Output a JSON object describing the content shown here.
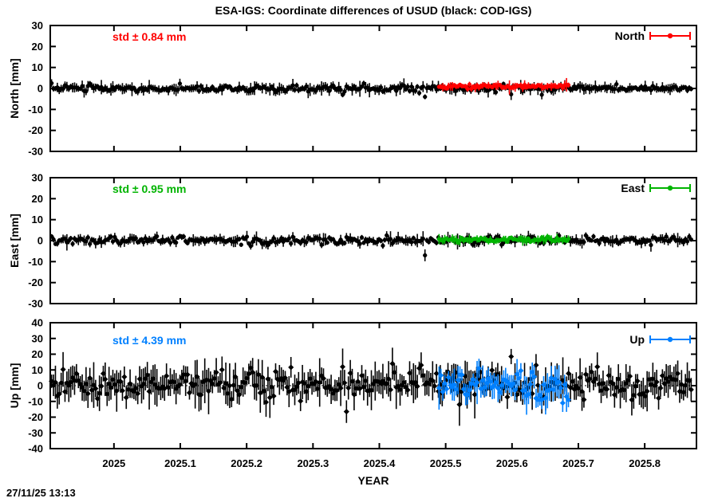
{
  "header": {
    "title": "ESA-IGS: Coordinate differences of USUD (black: COD-IGS)"
  },
  "footer": {
    "timestamp": "27/11/25 13:13"
  },
  "axes": {
    "xlabel": "YEAR",
    "xlim": [
      2024.904,
      2025.878
    ],
    "xticks": [
      {
        "value": 2025.0,
        "label": "2025"
      },
      {
        "value": 2025.1,
        "label": "2025.1"
      },
      {
        "value": 2025.2,
        "label": "2025.2"
      },
      {
        "value": 2025.3,
        "label": "2025.3"
      },
      {
        "value": 2025.4,
        "label": "2025.4"
      },
      {
        "value": 2025.5,
        "label": "2025.5"
      },
      {
        "value": 2025.6,
        "label": "2025.6"
      },
      {
        "value": 2025.7,
        "label": "2025.7"
      },
      {
        "value": 2025.8,
        "label": "2025.8"
      }
    ]
  },
  "colors": {
    "black": "#000000",
    "north": "#ff0000",
    "east": "#00b400",
    "up": "#0080ff"
  },
  "chart_data": [
    {
      "id": "north",
      "type": "scatter",
      "ylabel": "North [mm]",
      "std_label": "std ± 0.84 mm",
      "std_value_mm": 0.84,
      "legend_label": "North",
      "accent_color": "#ff0000",
      "ylim": [
        -30,
        30
      ],
      "zero_line": false,
      "yticks": [
        {
          "value": 30,
          "label": "30"
        },
        {
          "value": 20,
          "label": "20"
        },
        {
          "value": 10,
          "label": "10"
        },
        {
          "value": 0,
          "label": "0"
        },
        {
          "value": -10,
          "label": "-10"
        },
        {
          "value": -20,
          "label": "-20"
        },
        {
          "value": -30,
          "label": "-30"
        }
      ],
      "series": [
        {
          "name": "COD-IGS",
          "color": "#000000",
          "marker": "circle",
          "x_start": 2024.906,
          "x_end": 2025.87,
          "n": 335,
          "mean": 0.1,
          "std": 0.84,
          "clamp": [
            -3.2,
            3.2
          ],
          "err_base": 0.5,
          "err_rand": 0.5,
          "seed": 101,
          "outliers": [
            {
              "x": 2024.906,
              "y": 2.5
            },
            {
              "x": 2025.1,
              "y": 2.3
            },
            {
              "x": 2025.345,
              "y": -3.0
            },
            {
              "x": 2025.47,
              "y": -4.0
            },
            {
              "x": 2025.6,
              "y": -2.8
            },
            {
              "x": 2025.645,
              "y": -3.0
            }
          ]
        },
        {
          "name": "ESA-IGS",
          "color": "#ff0000",
          "marker": "circle",
          "x_start": 2025.49,
          "x_end": 2025.685,
          "n": 69,
          "mean": 1.0,
          "std": 0.55,
          "clamp": [
            -0.8,
            2.5
          ],
          "err_base": 0.4,
          "err_rand": 0.4,
          "seed": 102,
          "outliers": []
        }
      ]
    },
    {
      "id": "east",
      "type": "scatter",
      "ylabel": "East [mm]",
      "std_label": "std ± 0.95 mm",
      "std_value_mm": 0.95,
      "legend_label": "East",
      "accent_color": "#00b400",
      "ylim": [
        -30,
        30
      ],
      "zero_line": false,
      "yticks": [
        {
          "value": 30,
          "label": "30"
        },
        {
          "value": 20,
          "label": "20"
        },
        {
          "value": 10,
          "label": "10"
        },
        {
          "value": 0,
          "label": "0"
        },
        {
          "value": -10,
          "label": "-10"
        },
        {
          "value": -20,
          "label": "-20"
        },
        {
          "value": -30,
          "label": "-30"
        }
      ],
      "series": [
        {
          "name": "COD-IGS",
          "color": "#000000",
          "marker": "circle",
          "x_start": 2024.906,
          "x_end": 2025.87,
          "n": 335,
          "mean": 0.1,
          "std": 0.95,
          "clamp": [
            -3.0,
            3.0
          ],
          "err_base": 0.5,
          "err_rand": 0.5,
          "seed": 201,
          "outliers": [
            {
              "x": 2024.906,
              "y": 2.0
            },
            {
              "x": 2025.468,
              "y": -7.0
            },
            {
              "x": 2025.71,
              "y": 2.5
            }
          ]
        },
        {
          "name": "ESA-IGS",
          "color": "#00b400",
          "marker": "circle",
          "x_start": 2025.49,
          "x_end": 2025.685,
          "n": 69,
          "mean": 0.5,
          "std": 0.6,
          "clamp": [
            -1.2,
            2.2
          ],
          "err_base": 0.4,
          "err_rand": 0.4,
          "seed": 202,
          "outliers": []
        }
      ]
    },
    {
      "id": "up",
      "type": "scatter",
      "ylabel": "Up [mm]",
      "std_label": "std ± 4.39 mm",
      "std_value_mm": 4.39,
      "legend_label": "Up",
      "accent_color": "#0080ff",
      "ylim": [
        -40,
        40
      ],
      "zero_line": true,
      "yticks": [
        {
          "value": 40,
          "label": "40"
        },
        {
          "value": 30,
          "label": "30"
        },
        {
          "value": 20,
          "label": "20"
        },
        {
          "value": 10,
          "label": "10"
        },
        {
          "value": 0,
          "label": "0"
        },
        {
          "value": -10,
          "label": "-10"
        },
        {
          "value": -20,
          "label": "-20"
        },
        {
          "value": -30,
          "label": "-30"
        },
        {
          "value": -40,
          "label": "-40"
        }
      ],
      "series": [
        {
          "name": "COD-IGS",
          "color": "#000000",
          "marker": "diamond",
          "x_start": 2024.906,
          "x_end": 2025.87,
          "n": 335,
          "mean": 1.0,
          "std": 4.39,
          "clamp": [
            -11,
            12
          ],
          "err_base": 2.0,
          "err_rand": 2.4,
          "seed": 301,
          "outliers": [
            {
              "x": 2024.915,
              "y": -6.5
            },
            {
              "x": 2025.245,
              "y": 9.0
            },
            {
              "x": 2025.345,
              "y": 12.0
            },
            {
              "x": 2025.35,
              "y": -16.5
            },
            {
              "x": 2025.42,
              "y": 14.0
            },
            {
              "x": 2025.464,
              "y": 13.0
            },
            {
              "x": 2025.52,
              "y": -12.0
            },
            {
              "x": 2025.6,
              "y": 18.5
            },
            {
              "x": 2025.635,
              "y": 13.0
            },
            {
              "x": 2025.73,
              "y": 12.0
            },
            {
              "x": 2025.78,
              "y": -9.0
            }
          ]
        },
        {
          "name": "ESA-IGS",
          "color": "#0080ff",
          "marker": "diamond",
          "x_start": 2025.49,
          "x_end": 2025.685,
          "n": 69,
          "mean": 0.0,
          "std": 4.5,
          "clamp": [
            -9,
            10
          ],
          "err_base": 1.8,
          "err_rand": 2.0,
          "seed": 302,
          "outliers": [
            {
              "x": 2025.55,
              "y": 11.0
            },
            {
              "x": 2025.675,
              "y": -11.0
            },
            {
              "x": 2025.685,
              "y": -9.0
            }
          ]
        }
      ]
    }
  ]
}
